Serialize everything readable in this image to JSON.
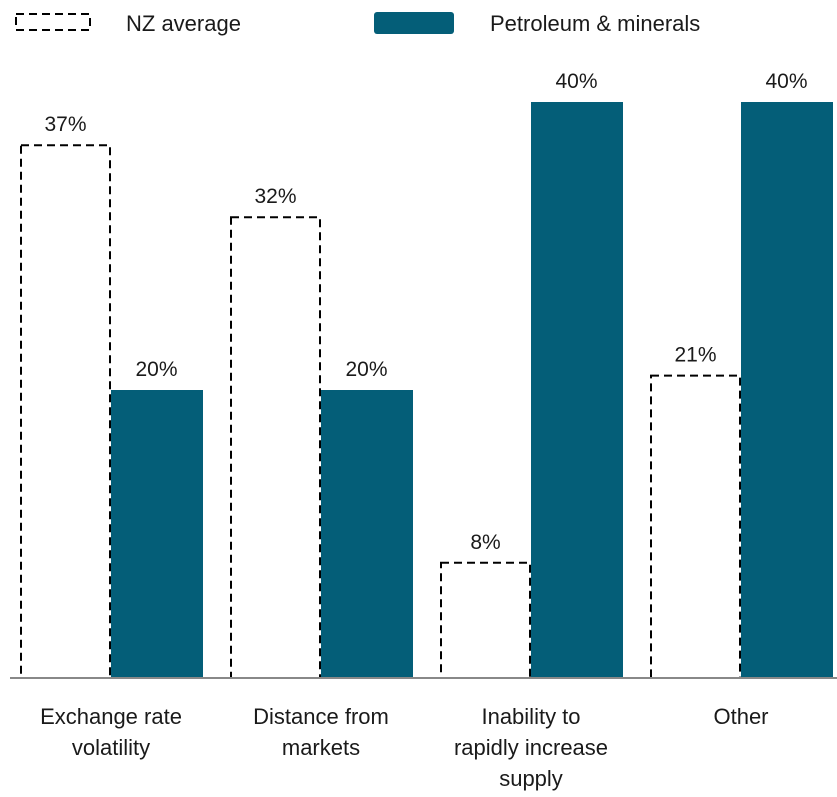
{
  "chart_data": {
    "type": "bar",
    "title": "",
    "xlabel": "",
    "ylabel": "",
    "ylim": [
      0,
      40
    ],
    "grid": false,
    "legend_position": "top",
    "categories": [
      [
        "Exchange rate",
        "volatility"
      ],
      [
        "Distance from",
        "markets"
      ],
      [
        "Inability to",
        "rapidly increase",
        "supply"
      ],
      [
        "Other"
      ]
    ],
    "series": [
      {
        "name": "NZ average",
        "style": "dashed-outline",
        "color": "#000000",
        "values": [
          37,
          32,
          8,
          21
        ],
        "labels": [
          "37%",
          "32%",
          "8%",
          "21%"
        ]
      },
      {
        "name": "Petroleum & minerals",
        "style": "filled",
        "color": "#045e78",
        "values": [
          20,
          20,
          40,
          40
        ],
        "labels": [
          "20%",
          "20%",
          "40%",
          "40%"
        ]
      }
    ]
  }
}
